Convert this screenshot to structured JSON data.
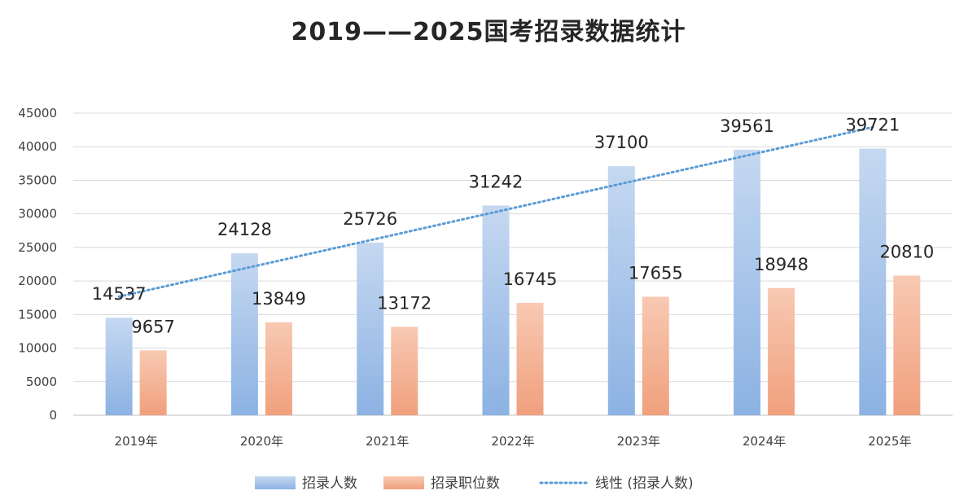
{
  "chart_data": {
    "type": "bar",
    "title": "2019——2025国考招录数据统计",
    "categories": [
      "2019年",
      "2020年",
      "2021年",
      "2022年",
      "2023年",
      "2024年",
      "2025年"
    ],
    "series": [
      {
        "name": "招录人数",
        "values": [
          14537,
          24128,
          25726,
          31242,
          37100,
          39561,
          39721
        ],
        "color_top": "#c5d8f1",
        "color_bottom": "#8cb2e3"
      },
      {
        "name": "招录职位数",
        "values": [
          9657,
          13849,
          13172,
          16745,
          17655,
          18948,
          20810
        ],
        "color_top": "#f8c9b3",
        "color_bottom": "#f0a07d"
      }
    ],
    "trendline": {
      "name": "线性 (招录人数)",
      "of_series": "招录人数",
      "type": "linear",
      "color": "#5b9bd5"
    },
    "ylim": [
      0,
      45000
    ],
    "yticks": [
      0,
      5000,
      10000,
      15000,
      20000,
      25000,
      30000,
      35000,
      40000,
      45000
    ],
    "grid": true,
    "legend": "bottom"
  }
}
